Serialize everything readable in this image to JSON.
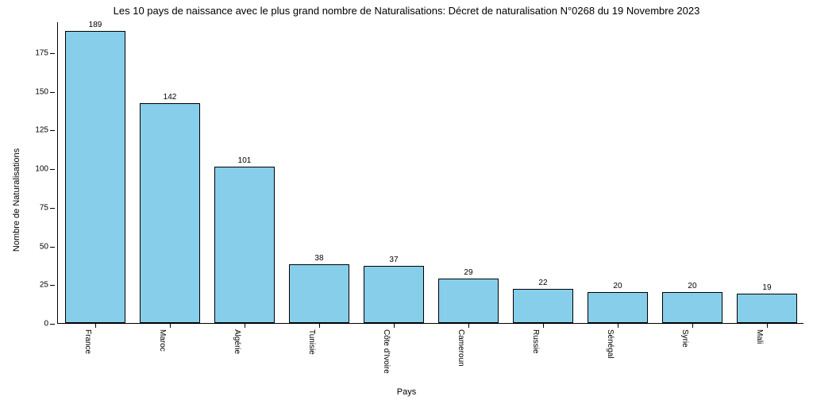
{
  "chart": {
    "type": "bar",
    "title": "Les 10 pays de naissance avec le plus grand nombre de Naturalisations: Décret de naturalisation N°0268 du 19 Novembre 2023",
    "title_fontsize": 13,
    "xlabel": "Pays",
    "ylabel": "Nombre de Naturalisations",
    "label_fontsize": 11,
    "tick_fontsize": 10,
    "value_fontsize": 10,
    "categories": [
      "France",
      "Maroc",
      "Algérie",
      "Tunisie",
      "Côte d'Ivoire",
      "Cameroun",
      "Russie",
      "Sénégal",
      "Syrie",
      "Mali"
    ],
    "values": [
      189,
      142,
      101,
      38,
      37,
      29,
      22,
      20,
      20,
      19
    ],
    "bar_color": "#87ceeb",
    "bar_edge_color": "#000000",
    "background_color": "#ffffff",
    "axis_color": "#000000",
    "text_color": "#000000",
    "ylim": [
      0,
      195
    ],
    "yticks": [
      0,
      25,
      50,
      75,
      100,
      125,
      150,
      175
    ],
    "bar_width": 0.8,
    "xtick_rotation": 90
  }
}
